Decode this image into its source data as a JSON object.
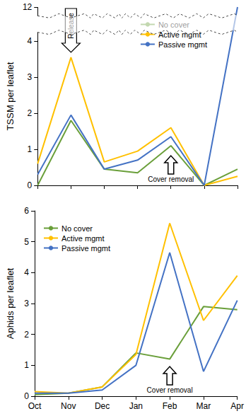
{
  "chart_data": [
    {
      "type": "line",
      "y_label": "TSSM per leaflet",
      "categories": [
        "Oct",
        "Nov",
        "Dec",
        "Jan",
        "Feb",
        "Mar",
        "Apr"
      ],
      "series": [
        {
          "name": "No cover",
          "color": "#6a9f3a",
          "values": [
            0,
            1.8,
            0.45,
            0.35,
            1.1,
            0,
            0.45
          ]
        },
        {
          "name": "Active mgmt",
          "color": "#ffc000",
          "values": [
            0.6,
            3.55,
            0.65,
            0.95,
            1.6,
            0,
            0.25
          ]
        },
        {
          "name": "Passive mgmt",
          "color": "#4472c4",
          "values": [
            0.3,
            1.95,
            0.45,
            0.7,
            1.35,
            0,
            12
          ]
        }
      ],
      "ylim": [
        0,
        12
      ],
      "yticks": [
        0,
        1,
        2,
        3,
        4,
        12
      ],
      "grid": false,
      "legend": "upper right",
      "tick_labels": "y",
      "annotations": [
        {
          "text": "Release",
          "x": "Nov",
          "direction": "down"
        },
        {
          "text": "Cover removal",
          "x": "Feb",
          "direction": "up"
        }
      ]
    },
    {
      "type": "line",
      "y_label": "Aphids per leaflet",
      "categories": [
        "Oct",
        "Nov",
        "Dec",
        "Jan",
        "Feb",
        "Mar",
        "Apr"
      ],
      "series": [
        {
          "name": "No cover",
          "color": "#6a9f3a",
          "values": [
            0.05,
            0.1,
            0.3,
            1.4,
            1.2,
            2.9,
            2.8
          ]
        },
        {
          "name": "Active mgmt",
          "color": "#ffc000",
          "values": [
            0.15,
            0.1,
            0.3,
            1.35,
            5.6,
            2.45,
            3.9
          ]
        },
        {
          "name": "Passive mgmt",
          "color": "#4472c4",
          "values": [
            0.1,
            0.1,
            0.2,
            1.0,
            4.65,
            0.8,
            3.1
          ]
        }
      ],
      "ylim": [
        0,
        6
      ],
      "yticks": [
        0,
        1,
        2,
        3,
        4,
        5,
        6
      ],
      "grid": false,
      "legend": "upper left",
      "annotations": [
        {
          "text": "Cover removal",
          "x": "Feb",
          "direction": "up"
        }
      ]
    }
  ]
}
